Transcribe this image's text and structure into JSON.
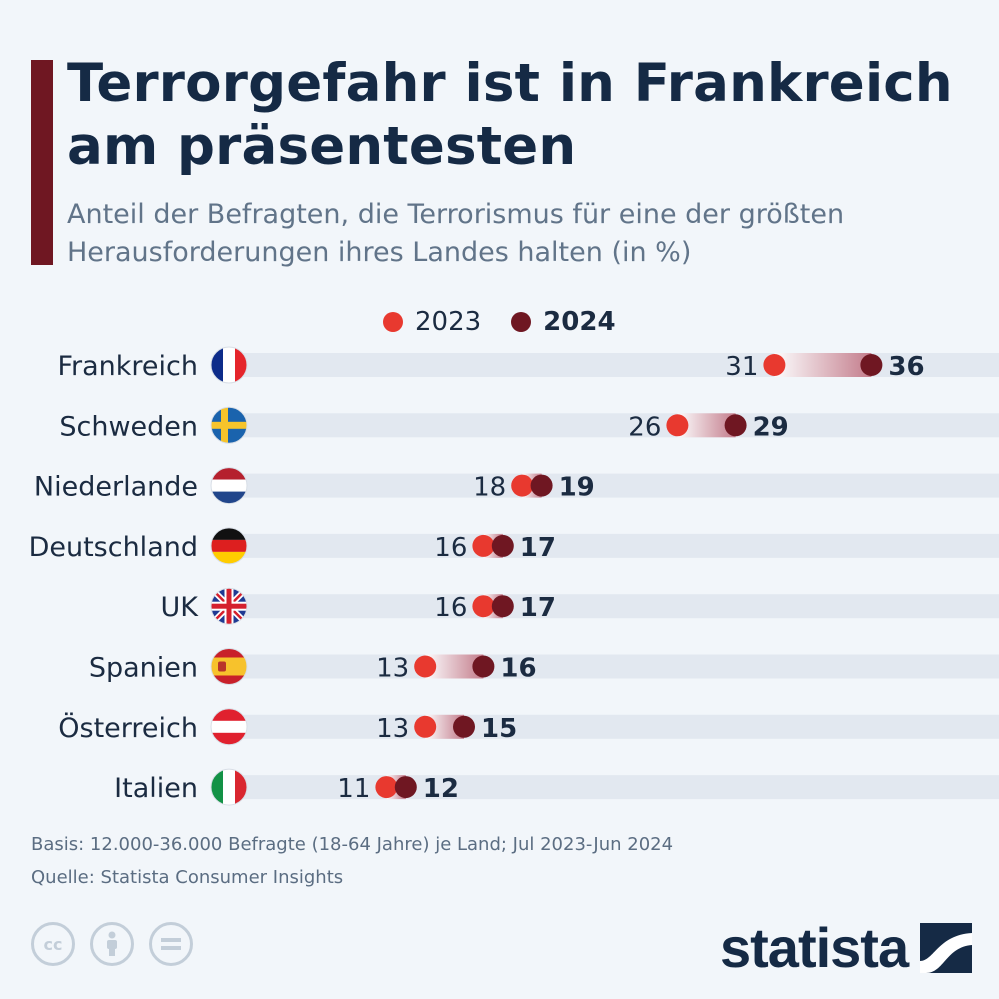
{
  "header": {
    "title": "Terrorgefahr ist in Frankreich am präsentesten",
    "subtitle": "Anteil der Befragten, die Terrorismus für eine der größten Herausforderungen ihres Landes halten (in %)"
  },
  "colors": {
    "c2023": "#e8392f",
    "c2024": "#6f1722",
    "track": "#e2e8f0",
    "text": "#1b2b41"
  },
  "chart_data": {
    "type": "dumbbell",
    "title": "Terrorgefahr ist in Frankreich am präsentesten",
    "series_names": [
      "2023",
      "2024"
    ],
    "categories": [
      "Frankreich",
      "Schweden",
      "Niederlande",
      "Deutschland",
      "UK",
      "Spanien",
      "Österreich",
      "Italien"
    ],
    "series": [
      {
        "name": "2023",
        "values": [
          31,
          26,
          18,
          16,
          16,
          13,
          13,
          11
        ]
      },
      {
        "name": "2024",
        "values": [
          36,
          29,
          19,
          17,
          17,
          16,
          15,
          12
        ]
      }
    ],
    "unit": "%",
    "xlim": [
      0,
      45
    ],
    "legend": "top-center"
  },
  "flags": [
    "flag-france-icon",
    "flag-sweden-icon",
    "flag-netherlands-icon",
    "flag-germany-icon",
    "flag-uk-icon",
    "flag-spain-icon",
    "flag-austria-icon",
    "flag-italy-icon"
  ],
  "footer": {
    "basis": "Basis: 12.000-36.000 Befragte (18-64 Jahre) je Land; Jul 2023-Jun 2024",
    "source": "Quelle: Statista Consumer Insights",
    "brand": "statista"
  }
}
